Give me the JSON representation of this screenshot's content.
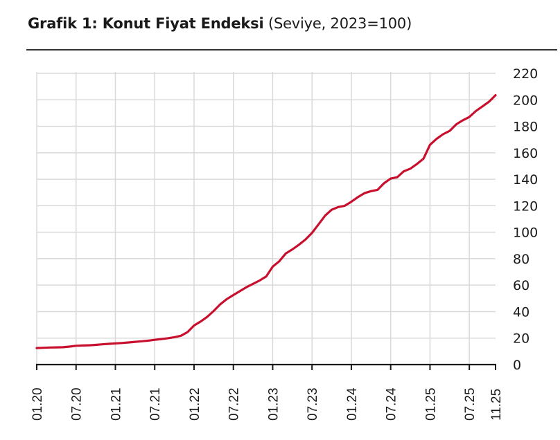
{
  "header": {
    "title_bold": "Grafik 1: Konut Fiyat Endeksi",
    "title_sub": "(Seviye, 2023=100)"
  },
  "colors": {
    "series": "#c8102e",
    "grid": "#d9d9d9",
    "axis": "#1a1a1a"
  },
  "chart_data": {
    "type": "line",
    "title": "Grafik 1: Konut Fiyat Endeksi (Seviye, 2023=100)",
    "xlabel": "",
    "ylabel": "",
    "ylim": [
      0,
      220
    ],
    "yticks": [
      0,
      20,
      40,
      60,
      80,
      100,
      120,
      140,
      160,
      180,
      200,
      220
    ],
    "y_axis_position": "right",
    "grid": true,
    "legend": null,
    "xtick_labels": [
      "01.20",
      "07.20",
      "01.21",
      "07.21",
      "01.22",
      "07.22",
      "01.23",
      "07.23",
      "01.24",
      "07.24",
      "01.25",
      "07.25",
      "11.25"
    ],
    "xtick_index": [
      0,
      6,
      12,
      18,
      24,
      30,
      36,
      42,
      48,
      54,
      60,
      66,
      70
    ],
    "series": [
      {
        "name": "Konut Fiyat Endeksi",
        "x": [
          "01.20",
          "02.20",
          "03.20",
          "04.20",
          "05.20",
          "06.20",
          "07.20",
          "08.20",
          "09.20",
          "10.20",
          "11.20",
          "12.20",
          "01.21",
          "02.21",
          "03.21",
          "04.21",
          "05.21",
          "06.21",
          "07.21",
          "08.21",
          "09.21",
          "10.21",
          "11.21",
          "12.21",
          "01.22",
          "02.22",
          "03.22",
          "04.22",
          "05.22",
          "06.22",
          "07.22",
          "08.22",
          "09.22",
          "10.22",
          "11.22",
          "12.22",
          "01.23",
          "02.23",
          "03.23",
          "04.23",
          "05.23",
          "06.23",
          "07.23",
          "08.23",
          "09.23",
          "10.23",
          "11.23",
          "12.23",
          "01.24",
          "02.24",
          "03.24",
          "04.24",
          "05.24",
          "06.24",
          "07.24",
          "08.24",
          "09.24",
          "10.24",
          "11.24",
          "12.24",
          "01.25",
          "02.25",
          "03.25",
          "04.25",
          "05.25",
          "06.25",
          "07.25",
          "08.25",
          "09.25",
          "10.25",
          "11.25"
        ],
        "values": [
          12.5,
          12.7,
          12.9,
          13.0,
          13.1,
          13.6,
          14.2,
          14.4,
          14.6,
          14.9,
          15.3,
          15.7,
          16.0,
          16.3,
          16.7,
          17.2,
          17.6,
          18.1,
          18.7,
          19.3,
          19.9,
          20.7,
          21.8,
          24.5,
          29.5,
          32.5,
          36.0,
          40.5,
          45.5,
          49.5,
          52.5,
          55.5,
          58.5,
          61.0,
          63.5,
          66.5,
          74.0,
          78.0,
          84.0,
          87.0,
          90.5,
          94.5,
          99.5,
          106.0,
          112.5,
          117.0,
          119.0,
          120.0,
          123.0,
          126.5,
          129.5,
          131.0,
          132.0,
          137.0,
          140.5,
          141.5,
          146.0,
          148.0,
          151.5,
          155.5,
          166.0,
          170.5,
          174.0,
          176.5,
          181.5,
          184.5,
          187.0,
          191.5,
          195.0,
          198.5,
          203.5
        ]
      }
    ]
  }
}
